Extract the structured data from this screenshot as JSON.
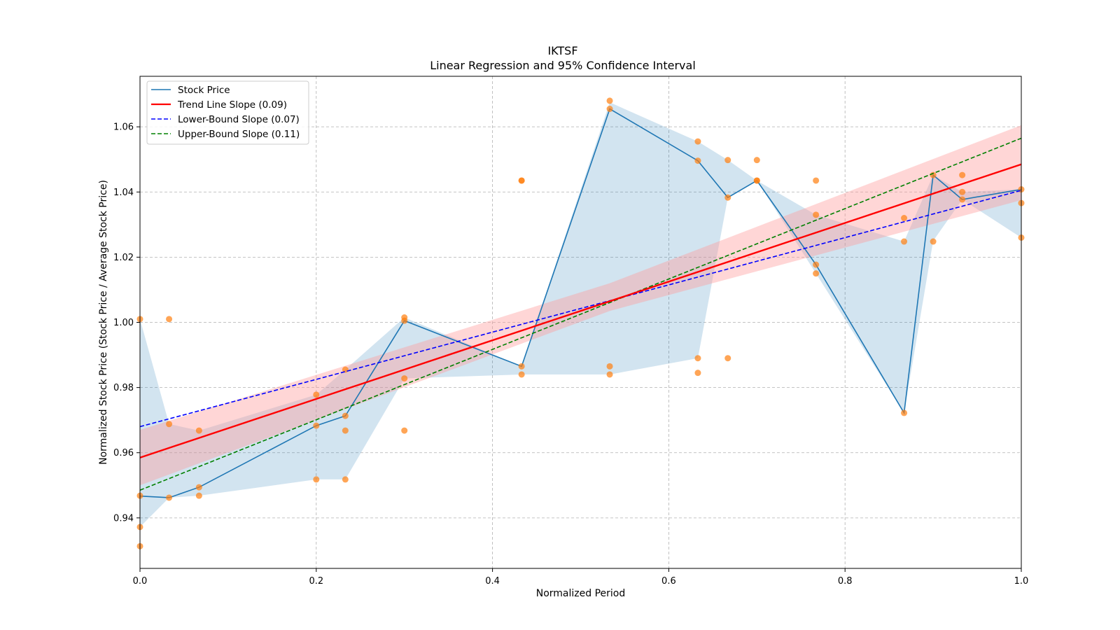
{
  "chart_data": {
    "type": "line",
    "title": "IKTSF",
    "subtitle": "Linear Regression and 95% Confidence Interval",
    "xlabel": "Normalized Period",
    "ylabel": "Normalized Stock Price (Stock Price / Average Stock Price)",
    "xlim": [
      0.0,
      1.0
    ],
    "ylim": [
      0.9245,
      1.0755
    ],
    "xticks": [
      0.0,
      0.2,
      0.4,
      0.6,
      0.8,
      1.0
    ],
    "xtick_labels": [
      "0.0",
      "0.2",
      "0.4",
      "0.6",
      "0.8",
      "1.0"
    ],
    "yticks": [
      0.94,
      0.96,
      0.98,
      1.0,
      1.02,
      1.04,
      1.06
    ],
    "ytick_labels": [
      "0.94",
      "0.96",
      "0.98",
      "1.00",
      "1.02",
      "1.04",
      "1.06"
    ],
    "grid": true,
    "legend_position": "top-left",
    "colors": {
      "price": "#1f77b4",
      "band": "#1f77b4",
      "scatter": "#ff7f0e",
      "trend": "#ff0000",
      "trend_ci": "#ff9999",
      "lower": "#0000ff",
      "upper": "#008000",
      "grid": "#b0b0b0"
    },
    "legend": [
      {
        "label": "Stock Price",
        "color": "#1f77b4",
        "dash": "solid"
      },
      {
        "label": "Trend Line Slope (0.09)",
        "color": "#ff0000",
        "dash": "solid"
      },
      {
        "label": "Lower-Bound Slope (0.07)",
        "color": "#0000ff",
        "dash": "dashed"
      },
      {
        "label": "Upper-Bound Slope (0.11)",
        "color": "#008000",
        "dash": "dashed"
      }
    ],
    "stock_price": {
      "x": [
        0.0,
        0.033,
        0.067,
        0.2,
        0.233,
        0.3,
        0.433,
        0.533,
        0.633,
        0.667,
        0.7,
        0.767,
        0.867,
        0.9,
        0.933,
        1.0
      ],
      "y": [
        0.9467,
        0.9462,
        0.9494,
        0.9683,
        0.9713,
        1.0005,
        0.9865,
        1.0655,
        1.0496,
        1.0383,
        1.0435,
        1.0177,
        0.9722,
        1.0452,
        1.0377,
        1.0408
      ]
    },
    "price_band": {
      "x": [
        0.0,
        0.033,
        0.067,
        0.2,
        0.233,
        0.3,
        0.433,
        0.533,
        0.633,
        0.667,
        0.7,
        0.767,
        0.867,
        0.9,
        0.933,
        1.0
      ],
      "upper": [
        1.001,
        0.9688,
        0.9668,
        0.9778,
        0.9855,
        1.0015,
        0.9865,
        1.0675,
        1.0555,
        1.0498,
        1.0435,
        1.033,
        1.0248,
        1.0452,
        1.04,
        1.0408
      ],
      "lower": [
        0.9372,
        0.9462,
        0.9468,
        0.9518,
        0.9518,
        0.9828,
        0.984,
        0.984,
        0.989,
        1.0383,
        1.0435,
        1.015,
        0.9722,
        1.025,
        1.0377,
        1.026
      ]
    },
    "scatter": {
      "x": [
        0.0,
        0.0,
        0.0,
        0.0,
        0.033,
        0.033,
        0.033,
        0.067,
        0.067,
        0.067,
        0.2,
        0.2,
        0.2,
        0.233,
        0.233,
        0.233,
        0.233,
        0.3,
        0.3,
        0.3,
        0.3,
        0.433,
        0.433,
        0.433,
        0.433,
        0.533,
        0.533,
        0.533,
        0.533,
        0.633,
        0.633,
        0.633,
        0.633,
        0.667,
        0.667,
        0.667,
        0.7,
        0.7,
        0.7,
        0.767,
        0.767,
        0.767,
        0.767,
        0.867,
        0.867,
        0.867,
        0.9,
        0.9,
        0.933,
        0.933,
        0.933,
        1.0,
        1.0,
        1.0
      ],
      "y": [
        1.001,
        0.9468,
        0.9372,
        0.9313,
        1.001,
        0.9688,
        0.9462,
        0.9668,
        0.9494,
        0.9468,
        0.9778,
        0.9683,
        0.9518,
        0.9855,
        0.9713,
        0.9668,
        0.9518,
        1.0015,
        1.0005,
        0.9828,
        0.9668,
        1.0435,
        1.0435,
        0.9865,
        0.984,
        1.068,
        1.0655,
        0.9865,
        0.984,
        1.0555,
        1.0496,
        0.989,
        0.9845,
        1.0498,
        1.0383,
        0.989,
        1.0498,
        1.0435,
        1.0435,
        1.0435,
        1.033,
        1.0177,
        1.015,
        1.032,
        1.0248,
        0.9722,
        1.0452,
        1.0248,
        1.0452,
        1.04,
        1.0377,
        1.0408,
        1.0366,
        1.026
      ]
    },
    "trend_line": {
      "x": [
        0.0,
        1.0
      ],
      "y": [
        0.9585,
        1.0485
      ]
    },
    "trend_ci": {
      "x": [
        0.0,
        0.533,
        1.0
      ],
      "upper": [
        0.967,
        1.012,
        1.0605
      ],
      "lower": [
        0.95,
        1.0035,
        1.0375
      ]
    },
    "lower_bound_line": {
      "x": [
        0.0,
        1.0
      ],
      "y": [
        0.968,
        1.0405
      ]
    },
    "upper_bound_line": {
      "x": [
        0.0,
        1.0
      ],
      "y": [
        0.9485,
        1.0565
      ]
    }
  }
}
